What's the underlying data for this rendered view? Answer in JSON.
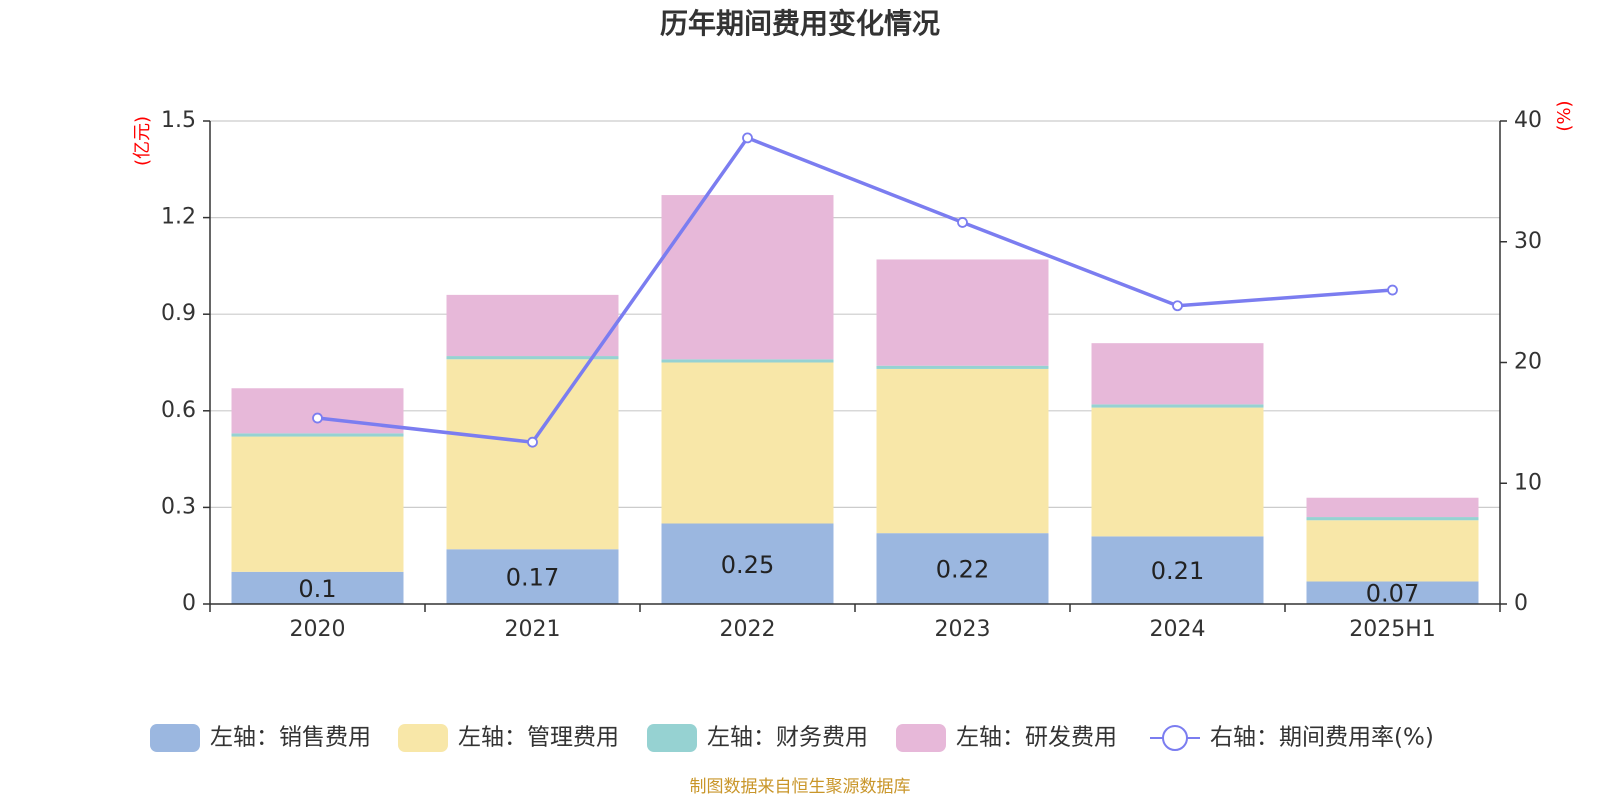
{
  "chart_data": {
    "type": "bar",
    "title": "历年期间费用变化情况",
    "categories": [
      "2020",
      "2021",
      "2022",
      "2023",
      "2024",
      "2025H1"
    ],
    "stacked": true,
    "left_axis": {
      "unit": "(亿元)",
      "ylim": [
        0,
        1.5
      ],
      "ticks": [
        "0",
        "0.3",
        "0.6",
        "0.9",
        "1.2",
        "1.5"
      ],
      "tick_values": [
        0,
        0.3,
        0.6,
        0.9,
        1.2,
        1.5
      ]
    },
    "right_axis": {
      "unit": "(%)",
      "ylim": [
        0,
        40
      ],
      "ticks": [
        "0",
        "10",
        "20",
        "30",
        "40"
      ],
      "tick_values": [
        0,
        10,
        20,
        30,
        40
      ]
    },
    "series": [
      {
        "name": "左轴：销售费用",
        "axis": "left",
        "type": "bar",
        "color": "#9bb7e0",
        "values": [
          0.1,
          0.17,
          0.25,
          0.22,
          0.21,
          0.07
        ],
        "labels": [
          "0.1",
          "0.17",
          "0.25",
          "0.22",
          "0.21",
          "0.07"
        ]
      },
      {
        "name": "左轴：管理费用",
        "axis": "left",
        "type": "bar",
        "color": "#f8e7a8",
        "values": [
          0.42,
          0.59,
          0.5,
          0.51,
          0.4,
          0.19
        ]
      },
      {
        "name": "左轴：财务费用",
        "axis": "left",
        "type": "bar",
        "color": "#96d2d2",
        "values": [
          0.01,
          0.01,
          0.01,
          0.01,
          0.01,
          0.01
        ]
      },
      {
        "name": "左轴：研发费用",
        "axis": "left",
        "type": "bar",
        "color": "#e7b8d9",
        "values": [
          0.14,
          0.19,
          0.51,
          0.33,
          0.19,
          0.06
        ]
      },
      {
        "name": "右轴：期间费用率(%)",
        "axis": "right",
        "type": "line",
        "color": "#7b7df0",
        "values": [
          15.4,
          13.4,
          38.6,
          31.6,
          24.7,
          26.0
        ]
      }
    ],
    "grid": true,
    "legend_position": "bottom",
    "source": "制图数据来自恒生聚源数据库"
  }
}
